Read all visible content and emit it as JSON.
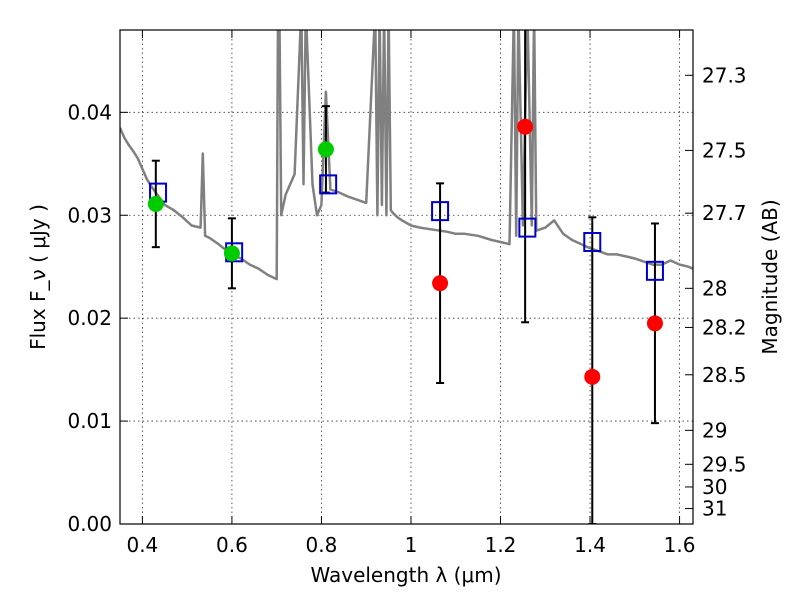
{
  "chart_data": {
    "type": "scatter",
    "title": "",
    "xlabel": "Wavelength  λ (μm)",
    "ylabel": "Flux  F_ν  ( μJy )",
    "y2label": "Magnitude (AB)",
    "xlim": [
      0.35,
      1.63
    ],
    "ylim": [
      0.0,
      0.048
    ],
    "grid": true,
    "x_ticks": [
      0.4,
      0.6,
      0.8,
      1.0,
      1.2,
      1.4,
      1.6
    ],
    "x_tick_labels": [
      "0.4",
      "0.6",
      "0.8",
      "1",
      "1.2",
      "1.4",
      "1.6"
    ],
    "y_ticks": [
      0.0,
      0.01,
      0.02,
      0.03,
      0.04
    ],
    "y_tick_labels": [
      "0.00",
      "0.01",
      "0.02",
      "0.03",
      "0.04"
    ],
    "mag_ticks": [
      {
        "label": "27.3",
        "flux": 0.0436
      },
      {
        "label": "27.5",
        "flux": 0.0363
      },
      {
        "label": "27.7",
        "flux": 0.0302
      },
      {
        "label": "28",
        "flux": 0.0229
      },
      {
        "label": "28.2",
        "flux": 0.0191
      },
      {
        "label": "28.5",
        "flux": 0.0145
      },
      {
        "label": "29",
        "flux": 0.0091
      },
      {
        "label": "29.5",
        "flux": 0.0058
      },
      {
        "label": "30",
        "flux": 0.0036
      },
      {
        "label": "31",
        "flux": 0.0015
      }
    ],
    "colors": {
      "sed": "#808080",
      "detected": "#00cc00",
      "model": "#0000cc",
      "upper": "#ff0000",
      "errorbar": "#000000"
    },
    "series": [
      {
        "kind": "sed",
        "x": [
          0.35,
          0.36,
          0.37,
          0.38,
          0.39,
          0.4,
          0.41,
          0.42,
          0.43,
          0.45,
          0.47,
          0.49,
          0.51,
          0.53,
          0.535,
          0.54,
          0.55,
          0.57,
          0.59,
          0.6,
          0.62,
          0.64,
          0.66,
          0.68,
          0.7,
          0.703,
          0.706,
          0.71,
          0.72,
          0.74,
          0.755,
          0.76,
          0.765,
          0.78,
          0.79,
          0.8,
          0.81,
          0.82,
          0.84,
          0.86,
          0.88,
          0.9,
          0.92,
          0.925,
          0.93,
          0.935,
          0.94,
          0.945,
          0.95,
          0.955,
          0.96,
          0.97,
          0.98,
          1.0,
          1.02,
          1.05,
          1.08,
          1.1,
          1.12,
          1.15,
          1.18,
          1.2,
          1.22,
          1.23,
          1.235,
          1.24,
          1.25,
          1.26,
          1.27,
          1.275,
          1.28,
          1.3,
          1.32,
          1.34,
          1.36,
          1.38,
          1.4,
          1.42,
          1.44,
          1.46,
          1.48,
          1.5,
          1.52,
          1.54,
          1.56,
          1.58,
          1.6,
          1.62,
          1.63
        ],
        "y": [
          0.0385,
          0.0375,
          0.0368,
          0.0362,
          0.0355,
          0.0345,
          0.0335,
          0.0328,
          0.0322,
          0.031,
          0.0305,
          0.0298,
          0.029,
          0.0288,
          0.036,
          0.028,
          0.0278,
          0.0272,
          0.0265,
          0.0262,
          0.0258,
          0.0252,
          0.0248,
          0.0242,
          0.0238,
          0.05,
          0.05,
          0.03,
          0.032,
          0.034,
          0.05,
          0.033,
          0.05,
          0.033,
          0.03,
          0.031,
          0.042,
          0.0325,
          0.0322,
          0.0318,
          0.0315,
          0.0312,
          0.05,
          0.03,
          0.05,
          0.031,
          0.05,
          0.03,
          0.05,
          0.0305,
          0.0302,
          0.0298,
          0.0295,
          0.029,
          0.0288,
          0.0286,
          0.0284,
          0.0282,
          0.0282,
          0.028,
          0.0276,
          0.0274,
          0.0272,
          0.05,
          0.028,
          0.05,
          0.029,
          0.05,
          0.029,
          0.05,
          0.0285,
          0.0288,
          0.0295,
          0.0282,
          0.0276,
          0.0272,
          0.0268,
          0.0265,
          0.0262,
          0.0262,
          0.026,
          0.0258,
          0.0255,
          0.0252,
          0.0252,
          0.0256,
          0.0252,
          0.025,
          0.0248
        ]
      },
      {
        "kind": "detected",
        "x": [
          0.43,
          0.6,
          0.81
        ],
        "y": [
          0.0311,
          0.0263,
          0.0364
        ],
        "yerr_low": [
          0.0042,
          0.0034,
          0.0042
        ],
        "yerr_high": [
          0.0042,
          0.0034,
          0.0042
        ]
      },
      {
        "kind": "model",
        "x": [
          0.435,
          0.605,
          0.815,
          1.065,
          1.26,
          1.405,
          1.545
        ],
        "y": [
          0.0322,
          0.0264,
          0.033,
          0.0304,
          0.0288,
          0.0274,
          0.0246
        ]
      },
      {
        "kind": "upper",
        "x": [
          1.065,
          1.255,
          1.405,
          1.545
        ],
        "y": [
          0.0234,
          0.0386,
          0.0143,
          0.0195
        ],
        "yerr_low": [
          0.0097,
          0.019,
          0.0143,
          0.0097
        ],
        "yerr_high": [
          0.0097,
          0.019,
          0.0155,
          0.0097
        ]
      }
    ]
  }
}
